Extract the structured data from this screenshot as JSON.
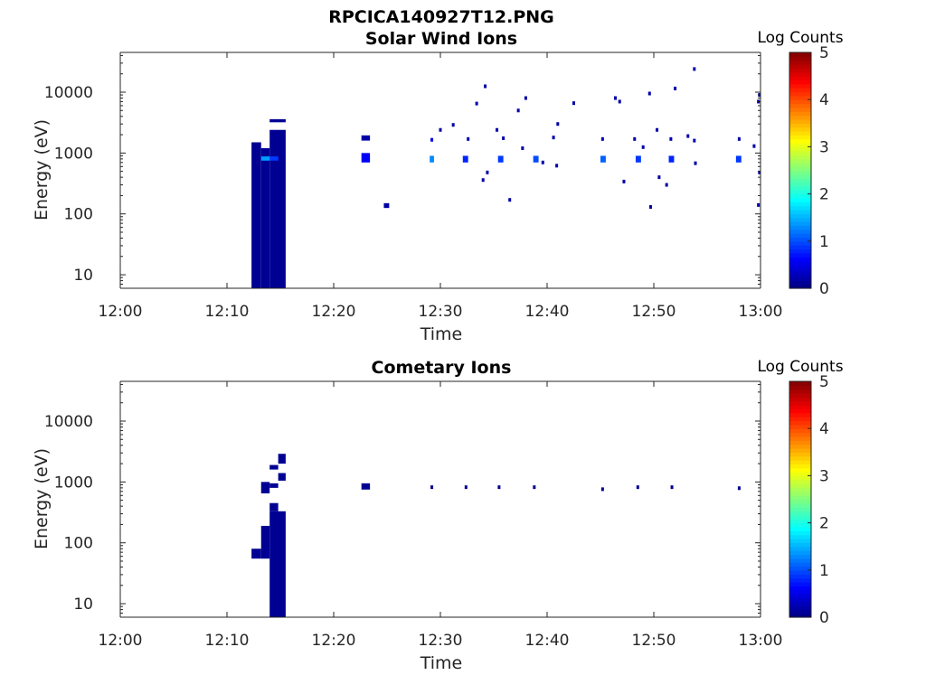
{
  "figure_title": "RPCICA140927T12.PNG",
  "colormap": [
    "#00007f",
    "#0000ff",
    "#007fff",
    "#00ffff",
    "#7fff7f",
    "#ffff00",
    "#ff7f00",
    "#ff0000",
    "#7f0000"
  ],
  "chart_data": [
    {
      "type": "heatmap",
      "title": "Solar Wind Ions",
      "xlabel": "Time",
      "ylabel": "Energy (eV)",
      "x_ticks": [
        "12:00",
        "12:10",
        "12:20",
        "12:30",
        "12:40",
        "12:50",
        "13:00"
      ],
      "x_range_minutes": [
        0,
        60
      ],
      "y_scale": "log",
      "y_range": [
        6,
        45000
      ],
      "y_ticks": [
        10,
        100,
        1000,
        10000
      ],
      "y_tick_labels": [
        "10",
        "100",
        "1000",
        "10000"
      ],
      "colorbar": {
        "label": "Log Counts",
        "range": [
          0,
          5
        ],
        "ticks": [
          "0",
          "1",
          "2",
          "3",
          "4",
          "5"
        ]
      },
      "cells": [
        {
          "t0": 12.3,
          "t1": 13.2,
          "e0": 6,
          "e1": 1500,
          "v": 0.1
        },
        {
          "t0": 13.2,
          "t1": 14.0,
          "e0": 6,
          "e1": 1200,
          "v": 0.1
        },
        {
          "t0": 14.0,
          "t1": 15.5,
          "e0": 6,
          "e1": 2400,
          "v": 0.1
        },
        {
          "t0": 13.2,
          "t1": 14.0,
          "e0": 750,
          "e1": 880,
          "v": 1.4
        },
        {
          "t0": 14.0,
          "t1": 14.8,
          "e0": 750,
          "e1": 880,
          "v": 0.9
        },
        {
          "t0": 14.0,
          "t1": 15.5,
          "e0": 3200,
          "e1": 3600,
          "v": 0.1
        },
        {
          "t0": 22.6,
          "t1": 23.4,
          "e0": 1600,
          "e1": 1950,
          "v": 0.2
        },
        {
          "t0": 22.6,
          "t1": 23.4,
          "e0": 700,
          "e1": 1000,
          "v": 0.6
        },
        {
          "t0": 24.7,
          "t1": 25.2,
          "e0": 125,
          "e1": 150,
          "v": 0.2
        },
        {
          "t0": 29.0,
          "t1": 29.4,
          "e0": 700,
          "e1": 900,
          "v": 1.3
        },
        {
          "t0": 32.1,
          "t1": 32.6,
          "e0": 700,
          "e1": 900,
          "v": 0.8
        },
        {
          "t0": 35.4,
          "t1": 35.9,
          "e0": 700,
          "e1": 900,
          "v": 0.9
        },
        {
          "t0": 38.7,
          "t1": 39.2,
          "e0": 700,
          "e1": 900,
          "v": 1.0
        },
        {
          "t0": 45.0,
          "t1": 45.5,
          "e0": 700,
          "e1": 900,
          "v": 1.1
        },
        {
          "t0": 48.3,
          "t1": 48.8,
          "e0": 700,
          "e1": 900,
          "v": 0.9
        },
        {
          "t0": 51.4,
          "t1": 51.9,
          "e0": 700,
          "e1": 900,
          "v": 0.8
        },
        {
          "t0": 57.7,
          "t1": 58.2,
          "e0": 700,
          "e1": 900,
          "v": 0.9
        }
      ],
      "points": [
        [
          29.2,
          1650,
          0.5
        ],
        [
          30.0,
          2400,
          0.2
        ],
        [
          31.2,
          2900,
          0.2
        ],
        [
          32.6,
          1700,
          0.2
        ],
        [
          33.4,
          6500,
          0.2
        ],
        [
          34.2,
          12500,
          0.2
        ],
        [
          34.0,
          360,
          0.2
        ],
        [
          34.4,
          480,
          0.2
        ],
        [
          35.3,
          2400,
          0.2
        ],
        [
          35.9,
          1750,
          0.2
        ],
        [
          36.5,
          170,
          0.2
        ],
        [
          37.3,
          5000,
          0.2
        ],
        [
          37.7,
          1200,
          0.2
        ],
        [
          38.0,
          8000,
          0.2
        ],
        [
          39.6,
          700,
          0.2
        ],
        [
          40.6,
          1800,
          0.2
        ],
        [
          40.9,
          620,
          0.2
        ],
        [
          41.0,
          3000,
          0.2
        ],
        [
          45.2,
          1700,
          0.3
        ],
        [
          46.4,
          8000,
          0.2
        ],
        [
          46.8,
          7000,
          0.2
        ],
        [
          47.2,
          340,
          0.2
        ],
        [
          48.2,
          1700,
          0.2
        ],
        [
          49.0,
          1250,
          0.2
        ],
        [
          49.6,
          9500,
          0.2
        ],
        [
          50.3,
          2400,
          0.2
        ],
        [
          50.5,
          400,
          0.2
        ],
        [
          51.2,
          300,
          0.2
        ],
        [
          51.6,
          1700,
          0.2
        ],
        [
          52.0,
          11500,
          0.2
        ],
        [
          53.2,
          1900,
          0.2
        ],
        [
          53.8,
          1600,
          0.2
        ],
        [
          53.9,
          680,
          0.2
        ],
        [
          53.8,
          24000,
          0.2
        ],
        [
          58.0,
          1700,
          0.2
        ],
        [
          59.4,
          1300,
          0.2
        ],
        [
          59.8,
          7000,
          0.2
        ],
        [
          59.9,
          9000,
          0.2
        ],
        [
          59.8,
          140,
          0.2
        ],
        [
          59.9,
          480,
          0.2
        ],
        [
          49.7,
          130,
          0.2
        ],
        [
          42.5,
          6600,
          0.2
        ]
      ]
    },
    {
      "type": "heatmap",
      "title": "Cometary Ions",
      "xlabel": "Time",
      "ylabel": "Energy (eV)",
      "x_ticks": [
        "12:00",
        "12:10",
        "12:20",
        "12:30",
        "12:40",
        "12:50",
        "13:00"
      ],
      "x_range_minutes": [
        0,
        60
      ],
      "y_scale": "log",
      "y_range": [
        6,
        45000
      ],
      "y_ticks": [
        10,
        100,
        1000,
        10000
      ],
      "y_tick_labels": [
        "10",
        "100",
        "1000",
        "10000"
      ],
      "colorbar": {
        "label": "Log Counts",
        "range": [
          0,
          5
        ],
        "ticks": [
          "0",
          "1",
          "2",
          "3",
          "4",
          "5"
        ]
      },
      "cells": [
        {
          "t0": 12.3,
          "t1": 13.2,
          "e0": 55,
          "e1": 80,
          "v": 0.1
        },
        {
          "t0": 13.2,
          "t1": 14.0,
          "e0": 55,
          "e1": 190,
          "v": 0.1
        },
        {
          "t0": 13.2,
          "t1": 14.0,
          "e0": 650,
          "e1": 1000,
          "v": 0.1
        },
        {
          "t0": 14.0,
          "t1": 15.5,
          "e0": 6,
          "e1": 330,
          "v": 0.1
        },
        {
          "t0": 14.0,
          "t1": 14.8,
          "e0": 330,
          "e1": 450,
          "v": 0.1
        },
        {
          "t0": 14.0,
          "t1": 14.8,
          "e0": 800,
          "e1": 950,
          "v": 0.1
        },
        {
          "t0": 14.0,
          "t1": 14.8,
          "e0": 1600,
          "e1": 1900,
          "v": 0.1
        },
        {
          "t0": 14.8,
          "t1": 15.5,
          "e0": 1050,
          "e1": 1400,
          "v": 0.1
        },
        {
          "t0": 14.8,
          "t1": 15.5,
          "e0": 2000,
          "e1": 2900,
          "v": 0.1
        },
        {
          "t0": 22.6,
          "t1": 23.4,
          "e0": 750,
          "e1": 950,
          "v": 0.1
        }
      ],
      "points": [
        [
          29.2,
          820,
          0.1
        ],
        [
          32.4,
          820,
          0.1
        ],
        [
          35.5,
          820,
          0.1
        ],
        [
          38.8,
          820,
          0.1
        ],
        [
          45.2,
          760,
          0.1
        ],
        [
          48.5,
          820,
          0.1
        ],
        [
          51.7,
          820,
          0.1
        ],
        [
          58.0,
          790,
          0.1
        ]
      ]
    }
  ]
}
